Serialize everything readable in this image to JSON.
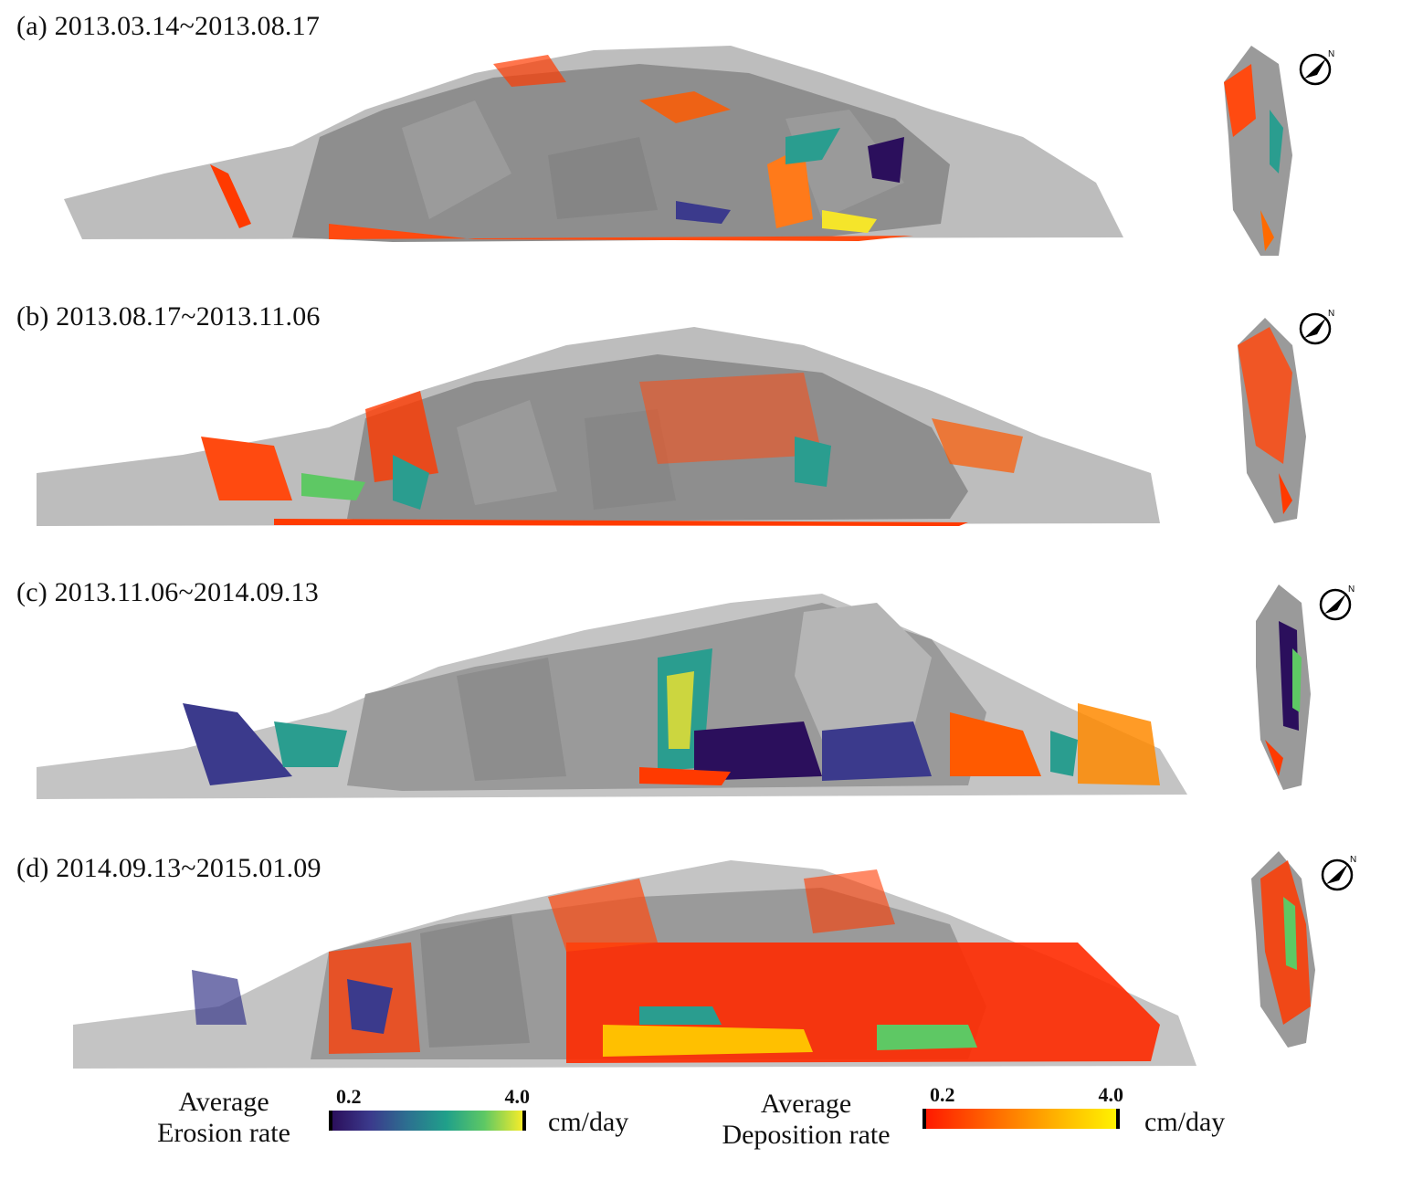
{
  "panels": [
    {
      "label": "(a) 2013.03.14~2013.08.17"
    },
    {
      "label": "(b) 2013.08.17~2013.11.06"
    },
    {
      "label": "(c) 2013.11.06~2014.09.13"
    },
    {
      "label": "(d) 2014.09.13~2015.01.09"
    }
  ],
  "north_symbol": "N",
  "legend": {
    "erosion": {
      "title_line1": "Average",
      "title_line2": "Erosion rate",
      "min": "0.2",
      "max": "4.0",
      "unit": "cm/day",
      "colors": [
        "#2b0f5c",
        "#3b3a8c",
        "#2c7190",
        "#20a08a",
        "#5ec864",
        "#f5ec2a"
      ]
    },
    "deposition": {
      "title_line1": "Average",
      "title_line2": "Deposition rate",
      "min": "0.2",
      "max": "4.0",
      "unit": "cm/day",
      "colors": [
        "#ff1a00",
        "#ff5200",
        "#ff8a00",
        "#ffc000",
        "#fff200"
      ]
    }
  },
  "colors": {
    "rock_gray": "#a9a9a9",
    "rock_dark": "#7a7a7a",
    "rock_light": "#c9c9c9"
  }
}
